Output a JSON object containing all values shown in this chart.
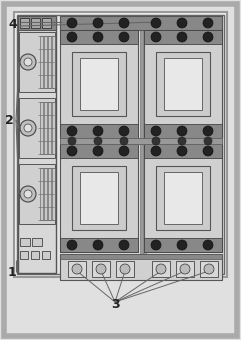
{
  "fig_width": 2.41,
  "fig_height": 3.4,
  "dpi": 100,
  "bg_outer": "#e0e0e0",
  "bg_inner": "#f0f0f0",
  "cabinet_bg": "#dcdcdc",
  "dark_strip": "#888888",
  "cb_body": "#d8d8d8",
  "cb_dark": "#666666",
  "terminal_dark": "#333333",
  "separator_color": "#888888",
  "label_color": "#222222",
  "line_color": "#666666",
  "label_fs": 9,
  "outer_lw": 5,
  "inner_lw": 1.5
}
